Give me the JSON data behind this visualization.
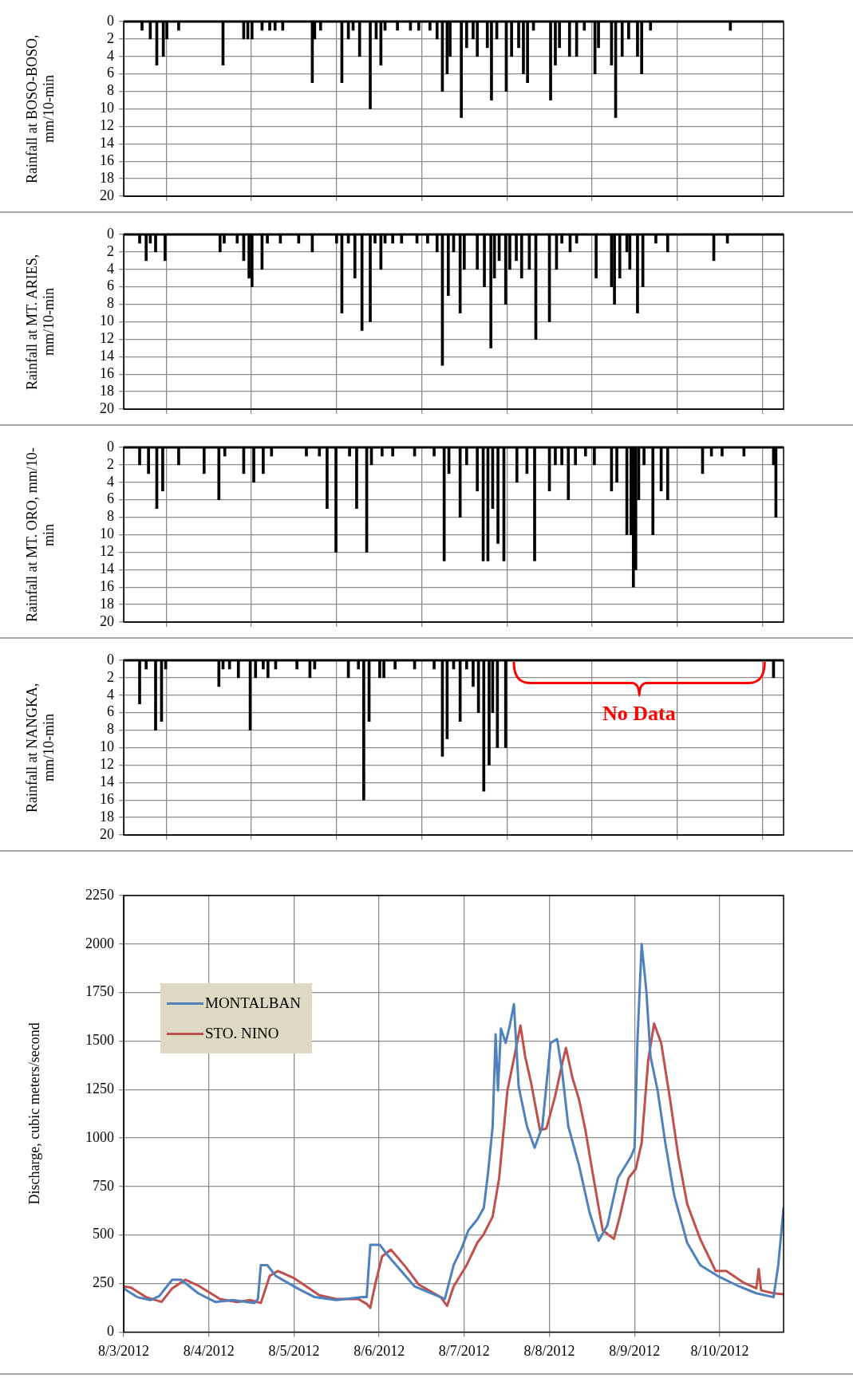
{
  "chart_data": [
    {
      "type": "bar",
      "ylabel": "Rainfall at BOSO-BOSO, mm/10-min",
      "color": "#000000",
      "xlim": [
        "2012-08-03T00:00",
        "2012-08-10T18:00"
      ],
      "ylim": [
        20,
        0
      ],
      "yticks": [
        0,
        2,
        4,
        6,
        8,
        10,
        12,
        14,
        16,
        18,
        20
      ],
      "grid": true,
      "tick_labels": "y",
      "xticks": [
        {
          "value": "2012-08-03",
          "label": null
        },
        {
          "value": "2012-08-04",
          "label": null
        },
        {
          "value": "2012-08-05",
          "label": null
        },
        {
          "value": "2012-08-06",
          "label": null
        },
        {
          "value": "2012-08-07",
          "label": null
        },
        {
          "value": "2012-08-08",
          "label": null
        },
        {
          "value": "2012-08-09",
          "label": null
        },
        {
          "value": "2012-08-10",
          "label": null
        }
      ],
      "x": [
        "2012-08-03T05:10",
        "2012-08-03T07:30",
        "2012-08-03T09:20",
        "2012-08-03T11:10",
        "2012-08-03T12:10",
        "2012-08-03T15:30",
        "2012-08-04T04:00",
        "2012-08-04T09:50",
        "2012-08-04T11:00",
        "2012-08-04T12:10",
        "2012-08-04T15:00",
        "2012-08-04T17:10",
        "2012-08-04T18:40",
        "2012-08-04T20:50",
        "2012-08-05T05:10",
        "2012-08-05T05:50",
        "2012-08-05T07:30",
        "2012-08-05T13:30",
        "2012-08-05T15:20",
        "2012-08-05T16:40",
        "2012-08-05T18:30",
        "2012-08-05T21:30",
        "2012-08-05T23:10",
        "2012-08-06T00:30",
        "2012-08-06T01:40",
        "2012-08-06T05:10",
        "2012-08-06T08:50",
        "2012-08-06T11:10",
        "2012-08-06T14:20",
        "2012-08-06T16:20",
        "2012-08-06T17:50",
        "2012-08-06T19:10",
        "2012-08-06T20:00",
        "2012-08-06T23:10",
        "2012-08-07T00:40",
        "2012-08-07T02:30",
        "2012-08-07T03:40",
        "2012-08-07T06:30",
        "2012-08-07T07:40",
        "2012-08-07T09:10",
        "2012-08-07T11:50",
        "2012-08-07T13:20",
        "2012-08-07T15:20",
        "2012-08-07T16:40",
        "2012-08-07T17:50",
        "2012-08-07T19:30",
        "2012-08-08T00:20",
        "2012-08-08T01:40",
        "2012-08-08T02:50",
        "2012-08-08T05:40",
        "2012-08-08T07:40",
        "2012-08-08T09:50",
        "2012-08-08T12:50",
        "2012-08-08T13:50",
        "2012-08-08T17:30",
        "2012-08-08T18:40",
        "2012-08-08T20:30",
        "2012-08-08T22:20",
        "2012-08-09T00:50",
        "2012-08-09T02:00",
        "2012-08-09T04:30",
        "2012-08-10T03:00"
      ],
      "values": [
        1,
        2,
        5,
        4,
        2,
        1,
        5,
        2,
        2,
        2,
        1,
        1,
        1,
        1,
        7,
        2,
        1,
        7,
        2,
        1,
        4,
        10,
        2,
        5,
        1,
        1,
        1,
        1,
        1,
        2,
        8,
        6,
        4,
        11,
        3,
        2,
        4,
        3,
        9,
        2,
        8,
        4,
        3,
        6,
        7,
        1,
        9,
        5,
        3,
        4,
        4,
        1,
        6,
        3,
        5,
        11,
        4,
        2,
        4,
        6,
        1,
        1
      ]
    },
    {
      "type": "bar",
      "ylabel": "Rainfall at MT. ARIES, mm/10-min",
      "color": "#000000",
      "xlim": [
        "2012-08-03T00:00",
        "2012-08-10T18:00"
      ],
      "ylim": [
        20,
        0
      ],
      "yticks": [
        0,
        2,
        4,
        6,
        8,
        10,
        12,
        14,
        16,
        18,
        20
      ],
      "grid": true,
      "tick_labels": "y",
      "xticks": [
        {
          "value": "2012-08-03",
          "label": null
        },
        {
          "value": "2012-08-04",
          "label": null
        },
        {
          "value": "2012-08-05",
          "label": null
        },
        {
          "value": "2012-08-06",
          "label": null
        },
        {
          "value": "2012-08-07",
          "label": null
        },
        {
          "value": "2012-08-08",
          "label": null
        },
        {
          "value": "2012-08-09",
          "label": null
        },
        {
          "value": "2012-08-10",
          "label": null
        }
      ],
      "x": [
        "2012-08-03T04:30",
        "2012-08-03T06:20",
        "2012-08-03T07:30",
        "2012-08-03T09:00",
        "2012-08-03T11:40",
        "2012-08-04T03:10",
        "2012-08-04T04:20",
        "2012-08-04T08:00",
        "2012-08-04T09:50",
        "2012-08-04T11:20",
        "2012-08-04T12:10",
        "2012-08-04T15:00",
        "2012-08-04T16:30",
        "2012-08-04T20:10",
        "2012-08-05T01:20",
        "2012-08-05T05:10",
        "2012-08-05T12:00",
        "2012-08-05T13:30",
        "2012-08-05T15:20",
        "2012-08-05T17:10",
        "2012-08-05T19:10",
        "2012-08-05T21:30",
        "2012-08-05T22:50",
        "2012-08-06T00:30",
        "2012-08-06T01:40",
        "2012-08-06T03:50",
        "2012-08-06T06:20",
        "2012-08-06T10:40",
        "2012-08-06T13:40",
        "2012-08-06T16:20",
        "2012-08-06T17:50",
        "2012-08-06T19:30",
        "2012-08-06T21:00",
        "2012-08-06T22:50",
        "2012-08-07T00:00",
        "2012-08-07T03:40",
        "2012-08-07T05:40",
        "2012-08-07T07:30",
        "2012-08-07T08:30",
        "2012-08-07T09:50",
        "2012-08-07T11:40",
        "2012-08-07T12:50",
        "2012-08-07T14:40",
        "2012-08-07T16:10",
        "2012-08-07T18:20",
        "2012-08-07T20:10",
        "2012-08-08T00:00",
        "2012-08-08T02:00",
        "2012-08-08T03:30",
        "2012-08-08T05:50",
        "2012-08-08T07:40",
        "2012-08-08T13:10",
        "2012-08-08T17:30",
        "2012-08-08T18:20",
        "2012-08-08T19:50",
        "2012-08-08T21:50",
        "2012-08-08T22:40",
        "2012-08-09T00:50",
        "2012-08-09T02:20",
        "2012-08-09T06:00",
        "2012-08-09T09:20",
        "2012-08-09T22:20",
        "2012-08-10T02:10"
      ],
      "values": [
        1,
        3,
        1,
        2,
        3,
        2,
        1,
        1,
        3,
        5,
        6,
        4,
        1,
        1,
        1,
        2,
        1,
        9,
        1,
        5,
        11,
        10,
        1,
        4,
        1,
        1,
        1,
        1,
        1,
        2,
        15,
        7,
        2,
        9,
        4,
        4,
        6,
        13,
        5,
        3,
        8,
        4,
        3,
        5,
        4,
        12,
        10,
        4,
        1,
        2,
        1,
        5,
        6,
        8,
        5,
        2,
        4,
        9,
        6,
        1,
        2,
        3,
        1
      ]
    },
    {
      "type": "bar",
      "ylabel": "Rainfall at MT. ORO, mm/10-min",
      "color": "#000000",
      "xlim": [
        "2012-08-03T00:00",
        "2012-08-10T18:00"
      ],
      "ylim": [
        20,
        0
      ],
      "yticks": [
        0,
        2,
        4,
        6,
        8,
        10,
        12,
        14,
        16,
        18,
        20
      ],
      "grid": true,
      "tick_labels": "y",
      "xticks": [
        {
          "value": "2012-08-03",
          "label": null
        },
        {
          "value": "2012-08-04",
          "label": null
        },
        {
          "value": "2012-08-05",
          "label": null
        },
        {
          "value": "2012-08-06",
          "label": null
        },
        {
          "value": "2012-08-07",
          "label": null
        },
        {
          "value": "2012-08-08",
          "label": null
        },
        {
          "value": "2012-08-09",
          "label": null
        },
        {
          "value": "2012-08-10",
          "label": null
        }
      ],
      "x": [
        "2012-08-03T04:30",
        "2012-08-03T07:00",
        "2012-08-03T09:20",
        "2012-08-03T11:00",
        "2012-08-03T15:30",
        "2012-08-03T22:40",
        "2012-08-04T02:50",
        "2012-08-04T04:30",
        "2012-08-04T09:50",
        "2012-08-04T12:40",
        "2012-08-04T15:20",
        "2012-08-04T17:40",
        "2012-08-05T03:30",
        "2012-08-05T07:10",
        "2012-08-05T09:20",
        "2012-08-05T11:50",
        "2012-08-05T15:40",
        "2012-08-05T17:40",
        "2012-08-05T20:30",
        "2012-08-05T21:50",
        "2012-08-06T00:50",
        "2012-08-06T03:50",
        "2012-08-06T10:00",
        "2012-08-06T15:30",
        "2012-08-06T18:20",
        "2012-08-06T19:40",
        "2012-08-06T22:50",
        "2012-08-07T00:40",
        "2012-08-07T03:40",
        "2012-08-07T05:20",
        "2012-08-07T06:40",
        "2012-08-07T08:00",
        "2012-08-07T09:30",
        "2012-08-07T11:10",
        "2012-08-07T14:50",
        "2012-08-07T17:40",
        "2012-08-07T19:50",
        "2012-08-08T00:00",
        "2012-08-08T01:40",
        "2012-08-08T03:30",
        "2012-08-08T05:20",
        "2012-08-08T07:20",
        "2012-08-08T10:10",
        "2012-08-08T12:40",
        "2012-08-08T17:30",
        "2012-08-08T19:00",
        "2012-08-08T21:50",
        "2012-08-08T23:00",
        "2012-08-08T23:40",
        "2012-08-09T00:20",
        "2012-08-09T01:10",
        "2012-08-09T02:40",
        "2012-08-09T05:10",
        "2012-08-09T07:30",
        "2012-08-09T09:20",
        "2012-08-09T19:10",
        "2012-08-09T21:40",
        "2012-08-10T00:40",
        "2012-08-10T06:50",
        "2012-08-10T15:10",
        "2012-08-10T15:50"
      ],
      "values": [
        2,
        3,
        7,
        5,
        2,
        3,
        6,
        1,
        3,
        4,
        3,
        1,
        1,
        1,
        7,
        12,
        1,
        7,
        12,
        2,
        1,
        1,
        1,
        1,
        13,
        3,
        8,
        2,
        5,
        13,
        13,
        7,
        11,
        13,
        4,
        3,
        13,
        5,
        2,
        2,
        6,
        2,
        1,
        2,
        5,
        4,
        10,
        10,
        16,
        14,
        6,
        2,
        10,
        5,
        6,
        3,
        1,
        1,
        1,
        2,
        8
      ]
    },
    {
      "type": "bar",
      "ylabel": "Rainfall at NANGKA, mm/10-min",
      "color": "#000000",
      "xlim": [
        "2012-08-03T00:00",
        "2012-08-10T18:00"
      ],
      "ylim": [
        20,
        0
      ],
      "yticks": [
        0,
        2,
        4,
        6,
        8,
        10,
        12,
        14,
        16,
        18,
        20
      ],
      "grid": true,
      "tick_labels": "y",
      "xticks": [
        {
          "value": "2012-08-03",
          "label": null
        },
        {
          "value": "2012-08-04",
          "label": null
        },
        {
          "value": "2012-08-05",
          "label": null
        },
        {
          "value": "2012-08-06",
          "label": null
        },
        {
          "value": "2012-08-07",
          "label": null
        },
        {
          "value": "2012-08-08",
          "label": null
        },
        {
          "value": "2012-08-09",
          "label": null
        },
        {
          "value": "2012-08-10",
          "label": null
        }
      ],
      "annotations": [
        "No Data"
      ],
      "x": [
        "2012-08-03T04:30",
        "2012-08-03T06:20",
        "2012-08-03T09:00",
        "2012-08-03T10:40",
        "2012-08-03T11:50",
        "2012-08-04T02:50",
        "2012-08-04T04:00",
        "2012-08-04T05:50",
        "2012-08-04T08:20",
        "2012-08-04T11:40",
        "2012-08-04T13:10",
        "2012-08-04T15:20",
        "2012-08-04T16:40",
        "2012-08-04T18:50",
        "2012-08-05T00:50",
        "2012-08-05T04:30",
        "2012-08-05T05:50",
        "2012-08-05T15:20",
        "2012-08-05T18:10",
        "2012-08-05T19:40",
        "2012-08-05T21:10",
        "2012-08-06T00:10",
        "2012-08-06T01:20",
        "2012-08-06T04:30",
        "2012-08-06T10:00",
        "2012-08-06T15:30",
        "2012-08-06T17:50",
        "2012-08-06T19:10",
        "2012-08-06T21:00",
        "2012-08-06T22:50",
        "2012-08-07T00:40",
        "2012-08-07T02:30",
        "2012-08-07T04:00",
        "2012-08-07T05:30",
        "2012-08-07T07:00",
        "2012-08-07T08:00",
        "2012-08-07T09:20",
        "2012-08-07T11:40",
        "2012-08-10T15:10"
      ],
      "values": [
        5,
        1,
        8,
        7,
        1,
        3,
        1,
        1,
        2,
        8,
        2,
        1,
        2,
        1,
        1,
        2,
        1,
        2,
        1,
        16,
        7,
        2,
        2,
        1,
        1,
        1,
        11,
        9,
        1,
        7,
        1,
        3,
        6,
        15,
        12,
        6,
        10,
        10,
        2
      ]
    },
    {
      "type": "line",
      "ylabel": "Discharge, cubic meters/second",
      "xlim": [
        "2012-08-03T00:00",
        "2012-08-10T18:00"
      ],
      "ylim": [
        0,
        2250
      ],
      "yticks": [
        0,
        250,
        500,
        750,
        1000,
        1250,
        1500,
        1750,
        2000,
        2250
      ],
      "grid": true,
      "legend": "top left",
      "marker": "none",
      "line_style": "solid",
      "xticks": [
        {
          "value": "2012-08-03",
          "label": "8/3/2012"
        },
        {
          "value": "2012-08-04",
          "label": "8/4/2012"
        },
        {
          "value": "2012-08-05",
          "label": "8/5/2012"
        },
        {
          "value": "2012-08-06",
          "label": "8/6/2012"
        },
        {
          "value": "2012-08-07",
          "label": "8/7/2012"
        },
        {
          "value": "2012-08-08",
          "label": "8/8/2012"
        },
        {
          "value": "2012-08-09",
          "label": "8/9/2012"
        },
        {
          "value": "2012-08-10",
          "label": "8/10/2012"
        }
      ],
      "series": [
        {
          "name": "MONTALBAN",
          "color": "#4f81bd",
          "x": [
            "2012-08-03T00:00",
            "2012-08-03T03:50",
            "2012-08-03T07:30",
            "2012-08-03T10:00",
            "2012-08-03T13:40",
            "2012-08-03T16:10",
            "2012-08-03T21:00",
            "2012-08-04T01:50",
            "2012-08-04T06:40",
            "2012-08-04T12:50",
            "2012-08-04T13:50",
            "2012-08-04T14:40",
            "2012-08-04T16:30",
            "2012-08-04T18:50",
            "2012-08-05T01:00",
            "2012-08-05T05:50",
            "2012-08-05T12:00",
            "2012-08-05T19:20",
            "2012-08-05T20:30",
            "2012-08-05T21:30",
            "2012-08-06T00:10",
            "2012-08-06T02:40",
            "2012-08-06T10:00",
            "2012-08-06T17:20",
            "2012-08-06T18:30",
            "2012-08-06T21:00",
            "2012-08-06T23:20",
            "2012-08-07T01:10",
            "2012-08-07T03:40",
            "2012-08-07T05:30",
            "2012-08-07T06:40",
            "2012-08-07T08:00",
            "2012-08-07T08:50",
            "2012-08-07T09:30",
            "2012-08-07T10:20",
            "2012-08-07T11:40",
            "2012-08-07T12:50",
            "2012-08-07T14:00",
            "2012-08-07T15:20",
            "2012-08-07T17:40",
            "2012-08-07T19:50",
            "2012-08-07T22:00",
            "2012-08-08T00:20",
            "2012-08-08T02:10",
            "2012-08-08T03:30",
            "2012-08-08T05:20",
            "2012-08-08T08:20",
            "2012-08-08T11:20",
            "2012-08-08T13:50",
            "2012-08-08T16:20",
            "2012-08-08T19:20",
            "2012-08-08T23:00",
            "2012-08-09T00:00",
            "2012-08-09T00:50",
            "2012-08-09T02:00",
            "2012-08-09T03:20",
            "2012-08-09T04:30",
            "2012-08-09T06:30",
            "2012-08-09T08:40",
            "2012-08-09T11:10",
            "2012-08-09T14:50",
            "2012-08-09T18:30",
            "2012-08-09T23:20",
            "2012-08-10T05:30",
            "2012-08-10T10:20",
            "2012-08-10T15:10",
            "2012-08-10T16:30",
            "2012-08-10T18:00"
          ],
          "values": [
            225,
            180,
            165,
            185,
            270,
            270,
            200,
            155,
            165,
            150,
            170,
            345,
            345,
            290,
            225,
            180,
            165,
            180,
            180,
            450,
            450,
            390,
            235,
            180,
            170,
            345,
            435,
            525,
            580,
            640,
            815,
            1060,
            1535,
            1245,
            1565,
            1490,
            1580,
            1690,
            1265,
            1060,
            950,
            1060,
            1490,
            1510,
            1355,
            1060,
            860,
            615,
            470,
            550,
            795,
            905,
            950,
            1510,
            2000,
            1755,
            1420,
            1245,
            975,
            705,
            460,
            345,
            290,
            235,
            200,
            180,
            345,
            640
          ]
        },
        {
          "name": "STO. NINO",
          "color": "#c0504d",
          "x": [
            "2012-08-03T00:00",
            "2012-08-03T02:00",
            "2012-08-03T06:20",
            "2012-08-03T10:40",
            "2012-08-03T13:40",
            "2012-08-03T17:20",
            "2012-08-03T21:00",
            "2012-08-04T03:10",
            "2012-08-04T08:00",
            "2012-08-04T11:40",
            "2012-08-04T14:40",
            "2012-08-04T17:10",
            "2012-08-04T19:30",
            "2012-08-04T23:50",
            "2012-08-05T07:10",
            "2012-08-05T12:00",
            "2012-08-05T18:10",
            "2012-08-05T20:30",
            "2012-08-05T21:30",
            "2012-08-05T23:00",
            "2012-08-06T00:50",
            "2012-08-06T03:20",
            "2012-08-06T07:30",
            "2012-08-06T11:10",
            "2012-08-06T17:20",
            "2012-08-06T19:10",
            "2012-08-06T21:00",
            "2012-08-07T00:40",
            "2012-08-07T03:40",
            "2012-08-07T05:30",
            "2012-08-07T08:00",
            "2012-08-07T09:50",
            "2012-08-07T11:00",
            "2012-08-07T12:10",
            "2012-08-07T14:00",
            "2012-08-07T15:50",
            "2012-08-07T17:10",
            "2012-08-07T18:50",
            "2012-08-07T21:20",
            "2012-08-07T23:10",
            "2012-08-08T01:40",
            "2012-08-08T03:30",
            "2012-08-08T04:40",
            "2012-08-08T06:30",
            "2012-08-08T08:20",
            "2012-08-08T10:10",
            "2012-08-08T12:00",
            "2012-08-08T15:00",
            "2012-08-08T18:10",
            "2012-08-08T19:50",
            "2012-08-08T22:20",
            "2012-08-09T00:20",
            "2012-08-09T02:00",
            "2012-08-09T03:50",
            "2012-08-09T05:30",
            "2012-08-09T07:30",
            "2012-08-09T10:00",
            "2012-08-09T12:20",
            "2012-08-09T14:50",
            "2012-08-09T18:30",
            "2012-08-09T22:50",
            "2012-08-10T01:50",
            "2012-08-10T06:40",
            "2012-08-10T10:20",
            "2012-08-10T11:00",
            "2012-08-10T11:40",
            "2012-08-10T15:10",
            "2012-08-10T18:00"
          ],
          "values": [
            235,
            230,
            180,
            155,
            225,
            270,
            240,
            170,
            155,
            165,
            150,
            290,
            315,
            280,
            190,
            170,
            170,
            145,
            125,
            255,
            390,
            425,
            335,
            245,
            180,
            135,
            235,
            345,
            460,
            505,
            595,
            795,
            1020,
            1245,
            1410,
            1580,
            1420,
            1285,
            1040,
            1050,
            1220,
            1375,
            1465,
            1310,
            1200,
            1040,
            840,
            525,
            480,
            595,
            795,
            840,
            975,
            1400,
            1590,
            1490,
            1200,
            905,
            660,
            480,
            315,
            315,
            255,
            225,
            325,
            215,
            200,
            195
          ]
        }
      ]
    }
  ]
}
